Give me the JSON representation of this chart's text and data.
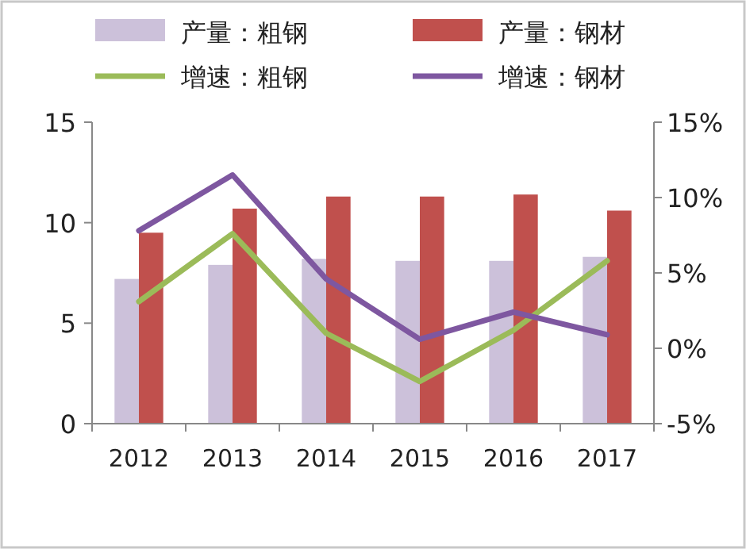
{
  "chart_data": {
    "type": "bar",
    "categories": [
      "2012",
      "2013",
      "2014",
      "2015",
      "2016",
      "2017"
    ],
    "series": [
      {
        "name": "产量：粗钢",
        "color": "#ccc1da",
        "values": [
          7.2,
          7.9,
          8.2,
          8.1,
          8.1,
          8.3
        ]
      },
      {
        "name": "产量：钢材",
        "color": "#c0504d",
        "values": [
          9.5,
          10.7,
          11.3,
          11.3,
          11.4,
          10.6
        ]
      },
      {
        "name": "增速：粗钢",
        "type": "line",
        "axis": "y2",
        "color": "#9bbb59",
        "values": [
          3.1,
          7.6,
          1.0,
          -2.2,
          1.2,
          5.8
        ]
      },
      {
        "name": "增速：钢材",
        "type": "line",
        "axis": "y2",
        "color": "#7e57a0",
        "values": [
          7.8,
          11.5,
          4.6,
          0.6,
          2.4,
          0.9
        ]
      }
    ],
    "ylim": [
      0,
      15
    ],
    "yticks": [
      0,
      5,
      10,
      15
    ],
    "y2lim": [
      -5,
      15
    ],
    "y2ticks": [
      {
        "value": -5,
        "label": "-5%"
      },
      {
        "value": 0,
        "label": "0%"
      },
      {
        "value": 5,
        "label": "5%"
      },
      {
        "value": 10,
        "label": "10%"
      },
      {
        "value": 15,
        "label": "15%"
      }
    ],
    "legend": "top",
    "grid": false
  }
}
